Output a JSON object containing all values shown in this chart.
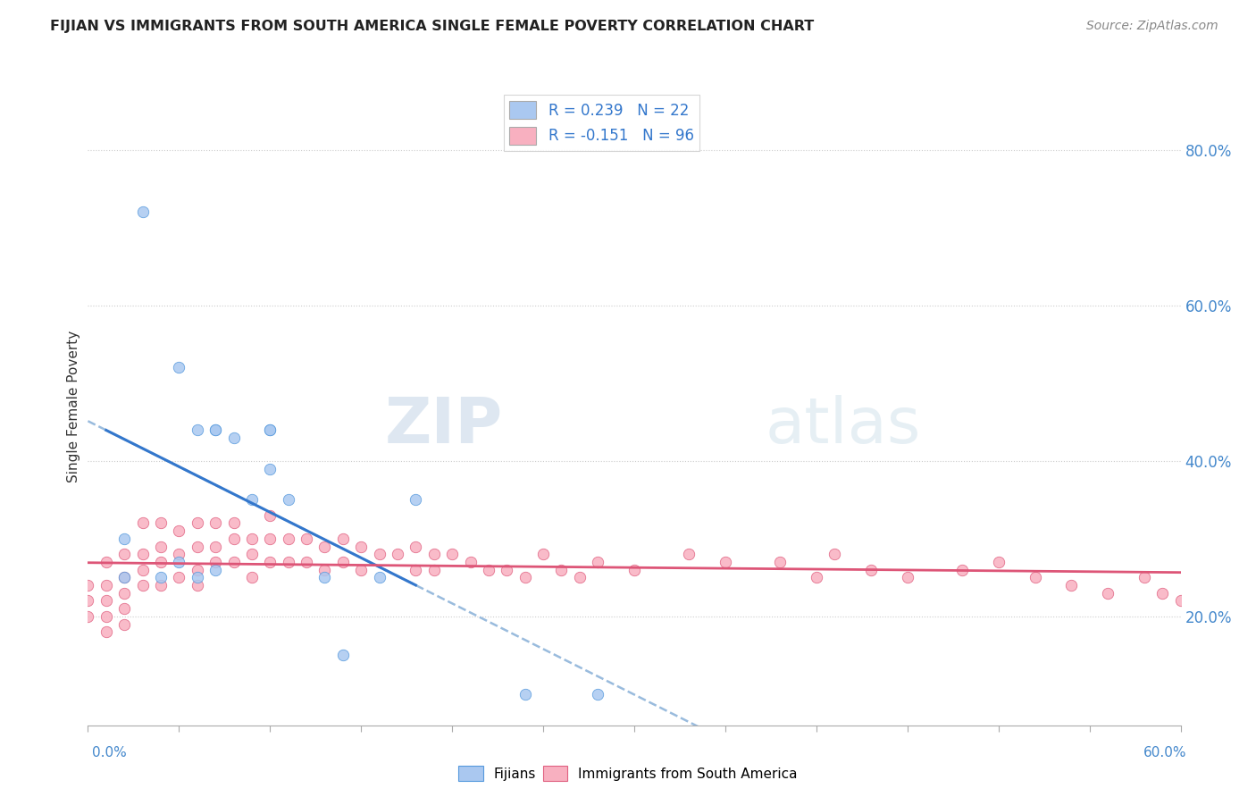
{
  "title": "FIJIAN VS IMMIGRANTS FROM SOUTH AMERICA SINGLE FEMALE POVERTY CORRELATION CHART",
  "source": "Source: ZipAtlas.com",
  "ylabel": "Single Female Poverty",
  "ytick_vals": [
    0.2,
    0.4,
    0.6,
    0.8
  ],
  "xmin": 0.0,
  "xmax": 0.6,
  "ymin": 0.06,
  "ymax": 0.88,
  "legend1_label": "R = 0.239   N = 22",
  "legend2_label": "R = -0.151   N = 96",
  "fijian_fill": "#aac8f0",
  "fijian_edge": "#5599dd",
  "sa_fill": "#f8b0c0",
  "sa_edge": "#e06080",
  "fijian_line_color": "#3377cc",
  "sa_line_color": "#dd5577",
  "dashed_line_color": "#99bbdd",
  "fijians_x": [
    0.02,
    0.03,
    0.05,
    0.06,
    0.07,
    0.07,
    0.08,
    0.09,
    0.1,
    0.1,
    0.11,
    0.13,
    0.14,
    0.16,
    0.18,
    0.24
  ],
  "fijians_y": [
    0.25,
    0.72,
    0.52,
    0.44,
    0.44,
    0.44,
    0.43,
    0.35,
    0.44,
    0.44,
    0.35,
    0.25,
    0.15,
    0.25,
    0.35,
    0.1
  ],
  "fijians_x2": [
    0.02,
    0.04,
    0.05,
    0.06,
    0.07,
    0.1,
    0.28
  ],
  "fijians_y2": [
    0.3,
    0.25,
    0.27,
    0.25,
    0.26,
    0.39,
    0.1
  ],
  "sa_x": [
    0.0,
    0.0,
    0.0,
    0.01,
    0.01,
    0.01,
    0.01,
    0.01,
    0.02,
    0.02,
    0.02,
    0.02,
    0.02,
    0.03,
    0.03,
    0.03,
    0.03,
    0.04,
    0.04,
    0.04,
    0.04,
    0.05,
    0.05,
    0.05,
    0.06,
    0.06,
    0.06,
    0.06,
    0.07,
    0.07,
    0.07,
    0.08,
    0.08,
    0.08,
    0.09,
    0.09,
    0.09,
    0.1,
    0.1,
    0.1,
    0.11,
    0.11,
    0.12,
    0.12,
    0.13,
    0.13,
    0.14,
    0.14,
    0.15,
    0.15,
    0.16,
    0.17,
    0.18,
    0.18,
    0.19,
    0.19,
    0.2,
    0.21,
    0.22,
    0.23,
    0.24,
    0.25,
    0.26,
    0.27,
    0.28,
    0.3,
    0.33,
    0.35,
    0.38,
    0.4,
    0.41,
    0.43,
    0.45,
    0.48,
    0.5,
    0.52,
    0.54,
    0.56,
    0.58,
    0.59,
    0.6
  ],
  "sa_y": [
    0.24,
    0.22,
    0.2,
    0.27,
    0.24,
    0.22,
    0.2,
    0.18,
    0.28,
    0.25,
    0.23,
    0.21,
    0.19,
    0.32,
    0.28,
    0.26,
    0.24,
    0.32,
    0.29,
    0.27,
    0.24,
    0.31,
    0.28,
    0.25,
    0.32,
    0.29,
    0.26,
    0.24,
    0.32,
    0.29,
    0.27,
    0.32,
    0.3,
    0.27,
    0.3,
    0.28,
    0.25,
    0.33,
    0.3,
    0.27,
    0.3,
    0.27,
    0.3,
    0.27,
    0.29,
    0.26,
    0.3,
    0.27,
    0.29,
    0.26,
    0.28,
    0.28,
    0.29,
    0.26,
    0.28,
    0.26,
    0.28,
    0.27,
    0.26,
    0.26,
    0.25,
    0.28,
    0.26,
    0.25,
    0.27,
    0.26,
    0.28,
    0.27,
    0.27,
    0.25,
    0.28,
    0.26,
    0.25,
    0.26,
    0.27,
    0.25,
    0.24,
    0.23,
    0.25,
    0.23,
    0.22
  ]
}
